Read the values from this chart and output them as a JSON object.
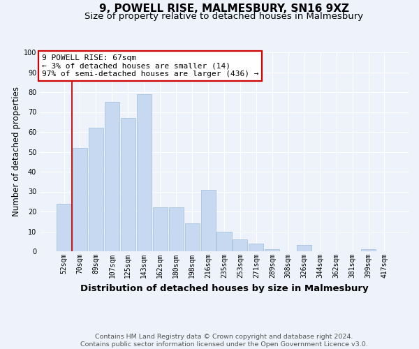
{
  "title": "9, POWELL RISE, MALMESBURY, SN16 9XZ",
  "subtitle": "Size of property relative to detached houses in Malmesbury",
  "xlabel": "Distribution of detached houses by size in Malmesbury",
  "ylabel": "Number of detached properties",
  "footnote1": "Contains HM Land Registry data © Crown copyright and database right 2024.",
  "footnote2": "Contains public sector information licensed under the Open Government Licence v3.0.",
  "categories": [
    "52sqm",
    "70sqm",
    "89sqm",
    "107sqm",
    "125sqm",
    "143sqm",
    "162sqm",
    "180sqm",
    "198sqm",
    "216sqm",
    "235sqm",
    "253sqm",
    "271sqm",
    "289sqm",
    "308sqm",
    "326sqm",
    "344sqm",
    "362sqm",
    "381sqm",
    "399sqm",
    "417sqm"
  ],
  "values": [
    24,
    52,
    62,
    75,
    67,
    79,
    22,
    22,
    14,
    31,
    10,
    6,
    4,
    1,
    0,
    3,
    0,
    0,
    0,
    1,
    0
  ],
  "bar_color": "#c6d9f0",
  "bar_edge_color": "#a8c4e0",
  "annotation_text": "9 POWELL RISE: 67sqm\n← 3% of detached houses are smaller (14)\n97% of semi-detached houses are larger (436) →",
  "annotation_box_facecolor": "#ffffff",
  "annotation_box_edgecolor": "#cc0000",
  "vline_color": "#cc0000",
  "vline_x": 0.5,
  "background_color": "#edf2fb",
  "grid_color": "#ffffff",
  "ylim_max": 100,
  "title_fontsize": 11,
  "subtitle_fontsize": 9.5,
  "xlabel_fontsize": 9.5,
  "ylabel_fontsize": 8.5,
  "tick_fontsize": 7,
  "annotation_fontsize": 8,
  "footnote_fontsize": 6.8
}
